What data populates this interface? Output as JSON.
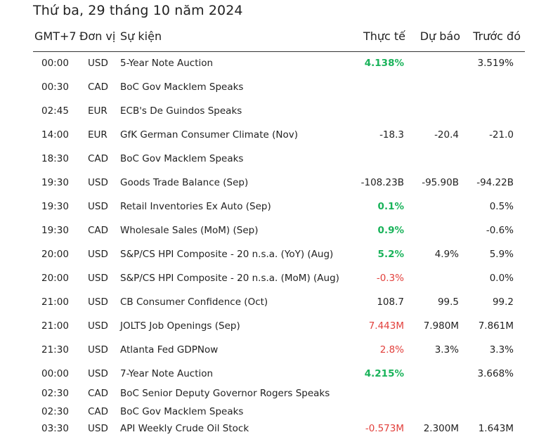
{
  "date_title": "Thứ ba, 29 tháng 10 năm 2024",
  "headers": {
    "time": "GMT+7",
    "currency": "Đơn vị",
    "event": "Sự kiện",
    "actual": "Thực tế",
    "forecast": "Dự báo",
    "previous": "Trước đó"
  },
  "colors": {
    "positive": "#19b35a",
    "negative": "#e2403c",
    "neutral": "#222222"
  },
  "rows": [
    {
      "time": "00:00",
      "currency": "USD",
      "event": "5-Year Note Auction",
      "actual": "4.138%",
      "actual_state": "pos",
      "forecast": "",
      "previous": "3.519%"
    },
    {
      "time": "00:30",
      "currency": "CAD",
      "event": "BoC Gov Macklem Speaks",
      "actual": "",
      "actual_state": "neutral",
      "forecast": "",
      "previous": ""
    },
    {
      "time": "02:45",
      "currency": "EUR",
      "event": "ECB's De Guindos Speaks",
      "actual": "",
      "actual_state": "neutral",
      "forecast": "",
      "previous": ""
    },
    {
      "time": "14:00",
      "currency": "EUR",
      "event": "GfK German Consumer Climate (Nov)",
      "actual": "-18.3",
      "actual_state": "neutral",
      "forecast": "-20.4",
      "previous": "-21.0"
    },
    {
      "time": "18:30",
      "currency": "CAD",
      "event": "BoC Gov Macklem Speaks",
      "actual": "",
      "actual_state": "neutral",
      "forecast": "",
      "previous": ""
    },
    {
      "time": "19:30",
      "currency": "USD",
      "event": "Goods Trade Balance (Sep)",
      "actual": "-108.23B",
      "actual_state": "neutral",
      "forecast": "-95.90B",
      "previous": "-94.22B"
    },
    {
      "time": "19:30",
      "currency": "USD",
      "event": "Retail Inventories Ex Auto (Sep)",
      "actual": "0.1%",
      "actual_state": "pos",
      "forecast": "",
      "previous": "0.5%"
    },
    {
      "time": "19:30",
      "currency": "CAD",
      "event": "Wholesale Sales (MoM) (Sep)",
      "actual": "0.9%",
      "actual_state": "pos",
      "forecast": "",
      "previous": "-0.6%"
    },
    {
      "time": "20:00",
      "currency": "USD",
      "event": "S&P/CS HPI Composite - 20 n.s.a. (YoY) (Aug)",
      "actual": "5.2%",
      "actual_state": "pos",
      "forecast": "4.9%",
      "previous": "5.9%"
    },
    {
      "time": "20:00",
      "currency": "USD",
      "event": "S&P/CS HPI Composite - 20 n.s.a. (MoM) (Aug)",
      "actual": "-0.3%",
      "actual_state": "neg",
      "forecast": "",
      "previous": "0.0%"
    },
    {
      "time": "21:00",
      "currency": "USD",
      "event": "CB Consumer Confidence (Oct)",
      "actual": "108.7",
      "actual_state": "neutral",
      "forecast": "99.5",
      "previous": "99.2"
    },
    {
      "time": "21:00",
      "currency": "USD",
      "event": "JOLTS Job Openings (Sep)",
      "actual": "7.443M",
      "actual_state": "neg",
      "forecast": "7.980M",
      "previous": "7.861M"
    },
    {
      "time": "21:30",
      "currency": "USD",
      "event": "Atlanta Fed GDPNow",
      "actual": "2.8%",
      "actual_state": "neg",
      "forecast": "3.3%",
      "previous": "3.3%"
    },
    {
      "time": "00:00",
      "currency": "USD",
      "event": "7-Year Note Auction",
      "actual": "4.215%",
      "actual_state": "pos",
      "forecast": "",
      "previous": "3.668%"
    },
    {
      "time": "02:30",
      "currency": "CAD",
      "event": "BoC Senior Deputy Governor Rogers Speaks",
      "actual": "",
      "actual_state": "neutral",
      "forecast": "",
      "previous": ""
    },
    {
      "time": "02:30",
      "currency": "CAD",
      "event": "BoC Gov Macklem Speaks",
      "actual": "",
      "actual_state": "neutral",
      "forecast": "",
      "previous": ""
    },
    {
      "time": "03:30",
      "currency": "USD",
      "event": "API Weekly Crude Oil Stock",
      "actual": "-0.573M",
      "actual_state": "neg",
      "forecast": "2.300M",
      "previous": "1.643M"
    }
  ]
}
